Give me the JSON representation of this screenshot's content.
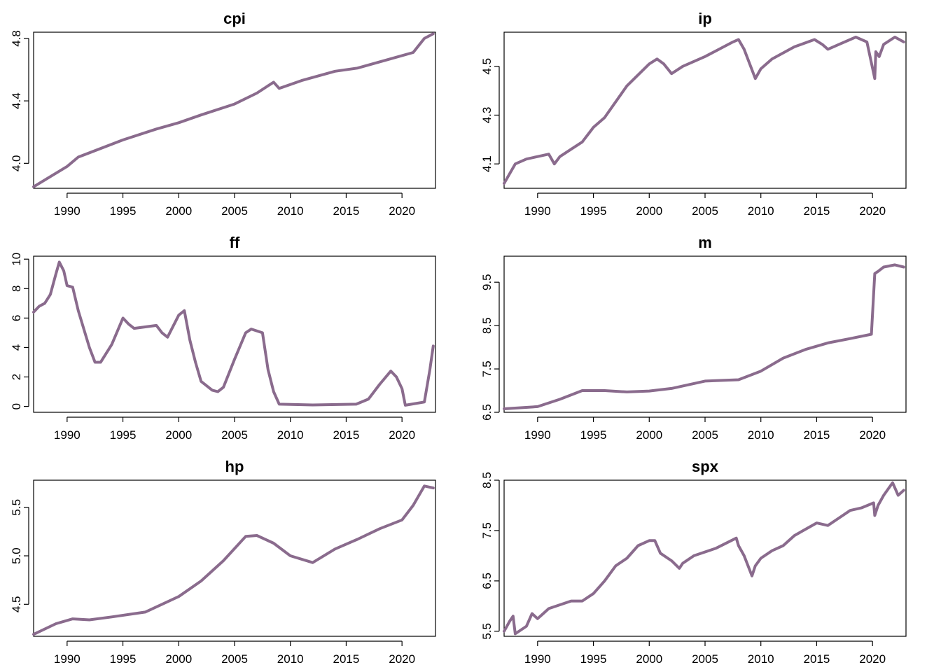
{
  "chart_data": [
    {
      "type": "line",
      "title": "cpi",
      "xlabel": "",
      "ylabel": "",
      "xlim": [
        1987,
        2023
      ],
      "ylim": [
        3.84,
        4.84
      ],
      "xticks": [
        "1990",
        "1995",
        "2000",
        "2005",
        "2010",
        "2015",
        "2020"
      ],
      "yticks": [
        "4.0",
        "4.4",
        "4.8"
      ],
      "series": [
        {
          "x": [
            1987,
            1990,
            1991,
            1995,
            1998,
            2000,
            2002,
            2005,
            2007,
            2008.5,
            2009,
            2011,
            2014,
            2016,
            2019,
            2021,
            2022,
            2022.8
          ],
          "y": [
            3.85,
            3.98,
            4.04,
            4.15,
            4.22,
            4.26,
            4.31,
            4.38,
            4.45,
            4.52,
            4.48,
            4.53,
            4.59,
            4.61,
            4.67,
            4.71,
            4.8,
            4.83
          ]
        }
      ]
    },
    {
      "type": "line",
      "title": "ip",
      "xlabel": "",
      "ylabel": "",
      "xlim": [
        1987,
        2023
      ],
      "ylim": [
        4.0,
        4.64
      ],
      "xticks": [
        "1990",
        "1995",
        "2000",
        "2005",
        "2010",
        "2015",
        "2020"
      ],
      "yticks": [
        "4.1",
        "4.3",
        "4.5"
      ],
      "series": [
        {
          "x": [
            1987,
            1988,
            1989,
            1990,
            1991,
            1991.5,
            1992,
            1993,
            1994,
            1995,
            1996,
            1998,
            2000,
            2000.7,
            2001.3,
            2002,
            2003,
            2005,
            2007.5,
            2008,
            2008.5,
            2009.5,
            2010,
            2011,
            2013,
            2014.8,
            2015.5,
            2016,
            2017,
            2018.5,
            2019.5,
            2020.2,
            2020.3,
            2020.6,
            2021,
            2022,
            2022.8
          ],
          "y": [
            4.02,
            4.1,
            4.12,
            4.13,
            4.14,
            4.1,
            4.13,
            4.16,
            4.19,
            4.25,
            4.29,
            4.42,
            4.51,
            4.53,
            4.51,
            4.47,
            4.5,
            4.54,
            4.6,
            4.61,
            4.57,
            4.45,
            4.49,
            4.53,
            4.58,
            4.61,
            4.59,
            4.57,
            4.59,
            4.62,
            4.6,
            4.45,
            4.56,
            4.54,
            4.59,
            4.62,
            4.6
          ]
        }
      ]
    },
    {
      "type": "line",
      "title": "ff",
      "xlabel": "",
      "ylabel": "",
      "xlim": [
        1987,
        2023
      ],
      "ylim": [
        -0.4,
        10.2
      ],
      "xticks": [
        "1990",
        "1995",
        "2000",
        "2005",
        "2010",
        "2015",
        "2020"
      ],
      "yticks": [
        "0",
        "2",
        "4",
        "6",
        "8",
        "10"
      ],
      "series": [
        {
          "x": [
            1987,
            1987.5,
            1988,
            1988.5,
            1989,
            1989.3,
            1989.7,
            1990,
            1990.5,
            1991,
            1992,
            1992.5,
            1993,
            1994,
            1995,
            1995.5,
            1996,
            1998,
            1998.5,
            1999,
            2000,
            2000.5,
            2001,
            2001.5,
            2002,
            2003,
            2003.5,
            2004,
            2005,
            2006,
            2006.5,
            2007.5,
            2008,
            2008.5,
            2009,
            2012,
            2015.9,
            2017,
            2018,
            2019,
            2019.5,
            2020,
            2020.3,
            2022,
            2022.5,
            2022.8
          ],
          "y": [
            6.4,
            6.8,
            7.0,
            7.6,
            9.0,
            9.8,
            9.2,
            8.2,
            8.1,
            6.5,
            4.0,
            3.0,
            3.0,
            4.2,
            6.0,
            5.6,
            5.3,
            5.5,
            5.0,
            4.7,
            6.2,
            6.5,
            4.5,
            3.0,
            1.7,
            1.1,
            1.0,
            1.3,
            3.2,
            5.0,
            5.25,
            5.0,
            2.5,
            1.0,
            0.15,
            0.1,
            0.15,
            0.5,
            1.5,
            2.4,
            2.0,
            1.2,
            0.08,
            0.3,
            2.5,
            4.1
          ]
        }
      ]
    },
    {
      "type": "line",
      "title": "m",
      "xlabel": "",
      "ylabel": "",
      "xlim": [
        1987,
        2023
      ],
      "ylim": [
        6.5,
        10.1
      ],
      "xticks": [
        "1990",
        "1995",
        "2000",
        "2005",
        "2010",
        "2015",
        "2020"
      ],
      "yticks": [
        "6.5",
        "7.5",
        "8.5",
        "9.5"
      ],
      "series": [
        {
          "x": [
            1987,
            1990,
            1992,
            1994,
            1996,
            1998,
            2000,
            2002,
            2005,
            2008,
            2010,
            2012,
            2014,
            2016,
            2018,
            2019.9,
            2020.2,
            2020.5,
            2021,
            2022,
            2022.8
          ],
          "y": [
            6.58,
            6.63,
            6.8,
            7.0,
            7.0,
            6.97,
            6.99,
            7.05,
            7.22,
            7.25,
            7.45,
            7.75,
            7.95,
            8.1,
            8.2,
            8.3,
            9.7,
            9.75,
            9.85,
            9.9,
            9.85
          ]
        }
      ]
    },
    {
      "type": "line",
      "title": "hp",
      "xlabel": "",
      "ylabel": "",
      "xlim": [
        1987,
        2023
      ],
      "ylim": [
        4.17,
        5.78
      ],
      "xticks": [
        "1990",
        "1995",
        "2000",
        "2005",
        "2010",
        "2015",
        "2020"
      ],
      "yticks": [
        "4.5",
        "5.0",
        "5.5"
      ],
      "series": [
        {
          "x": [
            1987,
            1989,
            1990.5,
            1992,
            1994,
            1997,
            2000,
            2002,
            2004,
            2006,
            2007,
            2008.5,
            2010,
            2012,
            2014,
            2016,
            2018,
            2020,
            2021,
            2022,
            2022.8
          ],
          "y": [
            4.19,
            4.3,
            4.35,
            4.34,
            4.37,
            4.42,
            4.58,
            4.74,
            4.95,
            5.2,
            5.21,
            5.13,
            5.0,
            4.93,
            5.07,
            5.17,
            5.28,
            5.37,
            5.52,
            5.72,
            5.7
          ]
        }
      ]
    },
    {
      "type": "line",
      "title": "spx",
      "xlabel": "",
      "ylabel": "",
      "xlim": [
        1987,
        2023
      ],
      "ylim": [
        5.4,
        8.5
      ],
      "xticks": [
        "1990",
        "1995",
        "2000",
        "2005",
        "2010",
        "2015",
        "2020"
      ],
      "yticks": [
        "5.5",
        "6.5",
        "7.5",
        "8.5"
      ],
      "series": [
        {
          "x": [
            1987,
            1987.5,
            1987.8,
            1988,
            1989,
            1989.5,
            1990,
            1990.5,
            1991,
            1993,
            1994,
            1995,
            1996,
            1997,
            1998,
            1999,
            2000,
            2000.5,
            2001,
            2002,
            2002.7,
            2003,
            2004,
            2006,
            2007.8,
            2008,
            2008.5,
            2009.2,
            2009.5,
            2010,
            2011,
            2012,
            2013,
            2015,
            2016,
            2017,
            2018,
            2019,
            2020.1,
            2020.2,
            2020.5,
            2021,
            2021.8,
            2022.3,
            2022.8
          ],
          "y": [
            5.5,
            5.7,
            5.8,
            5.45,
            5.6,
            5.85,
            5.75,
            5.85,
            5.95,
            6.1,
            6.1,
            6.25,
            6.5,
            6.8,
            6.95,
            7.2,
            7.3,
            7.3,
            7.05,
            6.9,
            6.75,
            6.85,
            7.0,
            7.15,
            7.35,
            7.2,
            7.0,
            6.6,
            6.8,
            6.95,
            7.1,
            7.2,
            7.4,
            7.65,
            7.6,
            7.75,
            7.9,
            7.95,
            8.05,
            7.8,
            8.0,
            8.2,
            8.45,
            8.2,
            8.3
          ]
        }
      ]
    }
  ],
  "style": {
    "line_color": "#8a6b8d",
    "line_width": 4
  }
}
